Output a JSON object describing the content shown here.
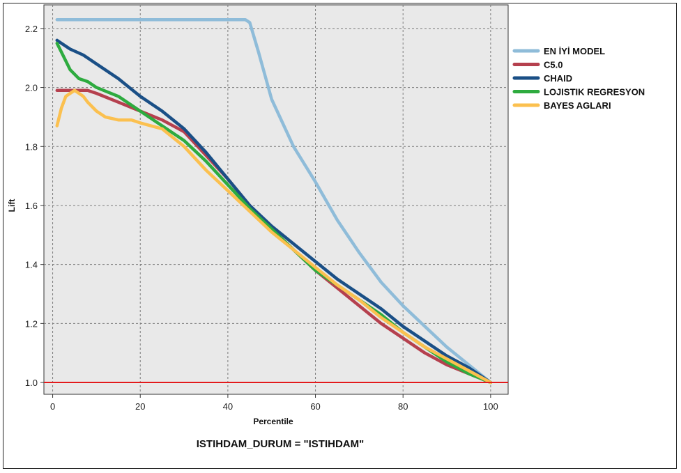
{
  "chart_data": {
    "type": "line",
    "title": "",
    "subtitle": "ISTIHDAM_DURUM = \"ISTIHDAM\"",
    "xlabel": "Percentile",
    "ylabel": "Lift",
    "xlim": [
      -2,
      104
    ],
    "ylim": [
      0.96,
      2.28
    ],
    "xticks": [
      0,
      20,
      40,
      60,
      80,
      100
    ],
    "yticks": [
      1.0,
      1.2,
      1.4,
      1.6,
      1.8,
      2.0,
      2.2
    ],
    "grid": true,
    "legend_position": "right",
    "reference_line": {
      "y": 1.0,
      "color": "#e31a1c"
    },
    "series": [
      {
        "name": "EN İYİ MODEL",
        "color": "#8fbcd9",
        "x": [
          1,
          5,
          10,
          20,
          30,
          40,
          44,
          45,
          47,
          50,
          55,
          60,
          65,
          70,
          75,
          80,
          85,
          90,
          95,
          100
        ],
        "y": [
          2.23,
          2.23,
          2.23,
          2.23,
          2.23,
          2.23,
          2.23,
          2.22,
          2.12,
          1.96,
          1.8,
          1.68,
          1.55,
          1.44,
          1.34,
          1.26,
          1.19,
          1.12,
          1.06,
          1.0
        ]
      },
      {
        "name": "C5.0",
        "color": "#b5404e",
        "x": [
          1,
          3,
          5,
          8,
          10,
          15,
          20,
          25,
          30,
          35,
          40,
          45,
          50,
          55,
          60,
          65,
          70,
          75,
          80,
          85,
          90,
          95,
          100
        ],
        "y": [
          1.99,
          1.99,
          1.99,
          1.99,
          1.98,
          1.95,
          1.92,
          1.89,
          1.85,
          1.77,
          1.69,
          1.6,
          1.52,
          1.45,
          1.38,
          1.32,
          1.26,
          1.2,
          1.15,
          1.1,
          1.06,
          1.03,
          1.0
        ]
      },
      {
        "name": "CHAID",
        "color": "#1a4f86",
        "x": [
          1,
          2,
          4,
          7,
          10,
          15,
          20,
          25,
          30,
          35,
          40,
          45,
          50,
          55,
          60,
          65,
          70,
          75,
          80,
          85,
          90,
          95,
          100
        ],
        "y": [
          2.16,
          2.15,
          2.13,
          2.11,
          2.08,
          2.03,
          1.97,
          1.92,
          1.86,
          1.78,
          1.69,
          1.6,
          1.53,
          1.47,
          1.41,
          1.35,
          1.3,
          1.25,
          1.19,
          1.14,
          1.09,
          1.05,
          1.0
        ]
      },
      {
        "name": "LOJISTIK REGRESYON",
        "color": "#2eab3f",
        "x": [
          1,
          2,
          4,
          6,
          8,
          10,
          15,
          20,
          25,
          30,
          35,
          40,
          45,
          50,
          55,
          60,
          65,
          70,
          75,
          80,
          85,
          90,
          95,
          100
        ],
        "y": [
          2.15,
          2.12,
          2.06,
          2.03,
          2.02,
          2.0,
          1.97,
          1.92,
          1.87,
          1.82,
          1.75,
          1.67,
          1.59,
          1.52,
          1.45,
          1.38,
          1.33,
          1.28,
          1.23,
          1.17,
          1.12,
          1.07,
          1.03,
          1.0
        ]
      },
      {
        "name": "BAYES AGLARI",
        "color": "#fbc04f",
        "x": [
          1,
          2,
          3,
          4,
          5,
          6,
          7,
          8,
          10,
          12,
          15,
          18,
          20,
          25,
          30,
          35,
          40,
          45,
          50,
          55,
          60,
          65,
          70,
          75,
          80,
          85,
          90,
          95,
          100
        ],
        "y": [
          1.87,
          1.93,
          1.97,
          1.98,
          1.99,
          1.98,
          1.97,
          1.95,
          1.92,
          1.9,
          1.89,
          1.89,
          1.88,
          1.86,
          1.8,
          1.72,
          1.65,
          1.58,
          1.51,
          1.45,
          1.39,
          1.33,
          1.28,
          1.22,
          1.17,
          1.12,
          1.08,
          1.04,
          1.0
        ]
      }
    ]
  }
}
